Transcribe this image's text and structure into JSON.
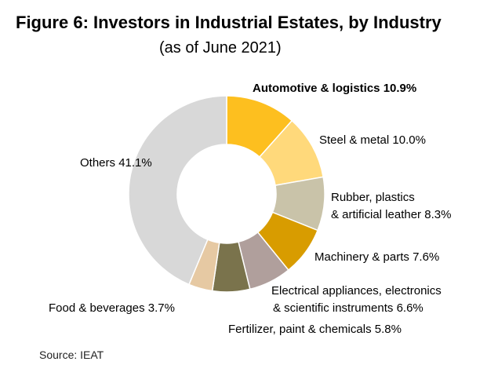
{
  "chart_data": {
    "type": "pie",
    "donut": true,
    "title": "Figure 6: Investors in Industrial Estates, by Industry",
    "subtitle": "(as of June 2021)",
    "unit": "%",
    "slices": [
      {
        "label": "Automotive & logistics",
        "value": 10.9,
        "value_text": "10.9%",
        "color": "#FDBF1F",
        "bold": true
      },
      {
        "label": "Steel & metal",
        "value": 10.0,
        "value_text": "10.0%",
        "color": "#FFD97B",
        "bold": false
      },
      {
        "label": "Rubber, plastics & artificial leather",
        "line1": "Rubber, plastics",
        "line2": "& artificial leather",
        "value": 8.3,
        "value_text": "8.3%",
        "color": "#C9C3A9",
        "bold": false
      },
      {
        "label": "Machinery & parts",
        "value": 7.6,
        "value_text": "7.6%",
        "color": "#D89C00",
        "bold": false
      },
      {
        "label": "Electrical appliances, electronics & scientific instruments",
        "line1": "Electrical appliances, electronics",
        "line2": "& scientific instruments",
        "value": 6.6,
        "value_text": "6.6%",
        "color": "#B09F9C",
        "bold": false
      },
      {
        "label": "Fertilizer, paint & chemicals",
        "value": 5.8,
        "value_text": "5.8%",
        "color": "#7A734C",
        "bold": false
      },
      {
        "label": "Food & beverages",
        "value": 3.7,
        "value_text": "3.7%",
        "color": "#E6C9A3",
        "bold": false
      },
      {
        "label": "Others",
        "value": 41.1,
        "value_text": "41.1%",
        "color": "#D8D8D8",
        "bold": false
      }
    ],
    "legend": "none",
    "source": "Source: IEAT"
  }
}
